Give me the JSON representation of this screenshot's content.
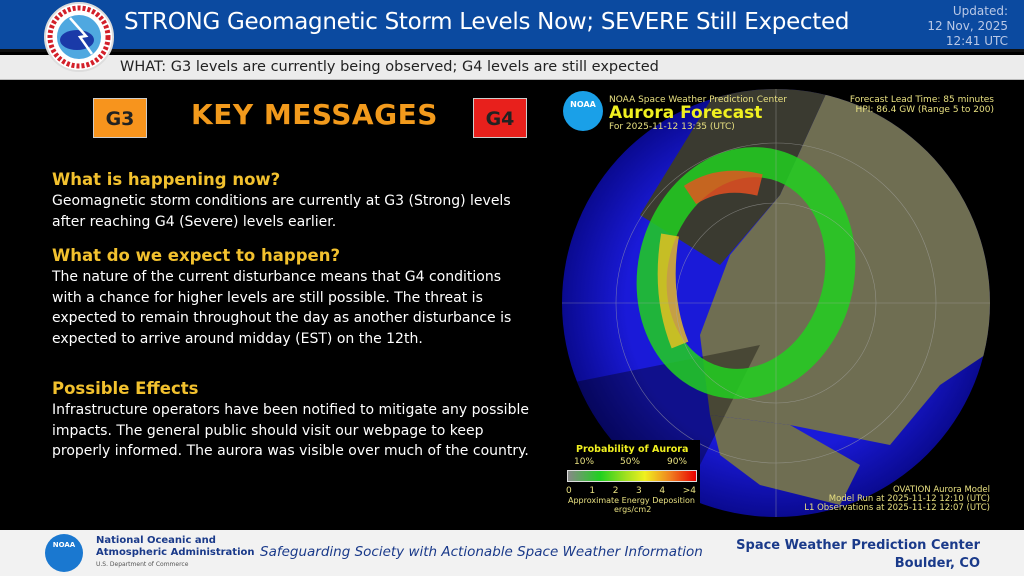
{
  "header": {
    "title": "STRONG Geomagnetic Storm Levels Now; SEVERE Still Expected",
    "updated_label": "Updated:",
    "updated_date": "12 Nov, 2025",
    "updated_time": "12:41 UTC",
    "logo_text": "NATIONAL WEATHER SERVICE"
  },
  "what_bar": {
    "text": "WHAT:  G3 levels are currently being observed; G4 levels are still expected"
  },
  "key_messages": {
    "title": "KEY MESSAGES",
    "badge_left": "G3",
    "badge_right": "G4",
    "badge_left_color": "#f7941d",
    "badge_right_color": "#e8201c",
    "sections": [
      {
        "heading": "What is happening now?",
        "body": "Geomagnetic storm conditions are currently at G3 (Strong) levels after reaching G4 (Severe) levels earlier."
      },
      {
        "heading": "What do we expect to happen?",
        "body": "The nature of the current disturbance means that G4 conditions with a chance for higher levels are still possible. The threat is expected to remain throughout the day as another disturbance is expected to arrive around midday (EST) on the 12th."
      },
      {
        "heading": "Possible Effects",
        "body": "Infrastructure operators have been notified to mitigate any possible impacts.  The general public should visit our webpage to keep properly informed. The aurora was visible over much of the country."
      }
    ]
  },
  "aurora": {
    "org": "NOAA Space Weather Prediction Center",
    "title": "Aurora Forecast",
    "for": "For 2025-11-12 13:35 (UTC)",
    "lead_time": "Forecast Lead Time:  85 minutes",
    "hpi": "HPI:  86.4 GW (Range 5 to 200)",
    "legend_title": "Probability of Aurora",
    "prob_ticks": [
      "10%",
      "50%",
      "90%"
    ],
    "energy_ticks": [
      "0",
      "1",
      "2",
      "3",
      "4",
      ">4"
    ],
    "energy_label": "Approximate Energy Deposition",
    "energy_unit": "ergs/cm2",
    "model": "OVATION Aurora Model",
    "model_run": "Model Run at 2025-11-12 12:10 (UTC)",
    "l1_obs": "L1 Observations at 2025-11-12 12:07 (UTC)",
    "noaa_logo": "NOAA"
  },
  "footer": {
    "org_line1": "National Oceanic and",
    "org_line2": "Atmospheric Administration",
    "dept": "U.S. Department of Commerce",
    "tagline": "Safeguarding Society with Actionable Space Weather Information",
    "center": "Space Weather Prediction Center",
    "location": "Boulder, CO",
    "noaa_logo": "NOAA"
  }
}
